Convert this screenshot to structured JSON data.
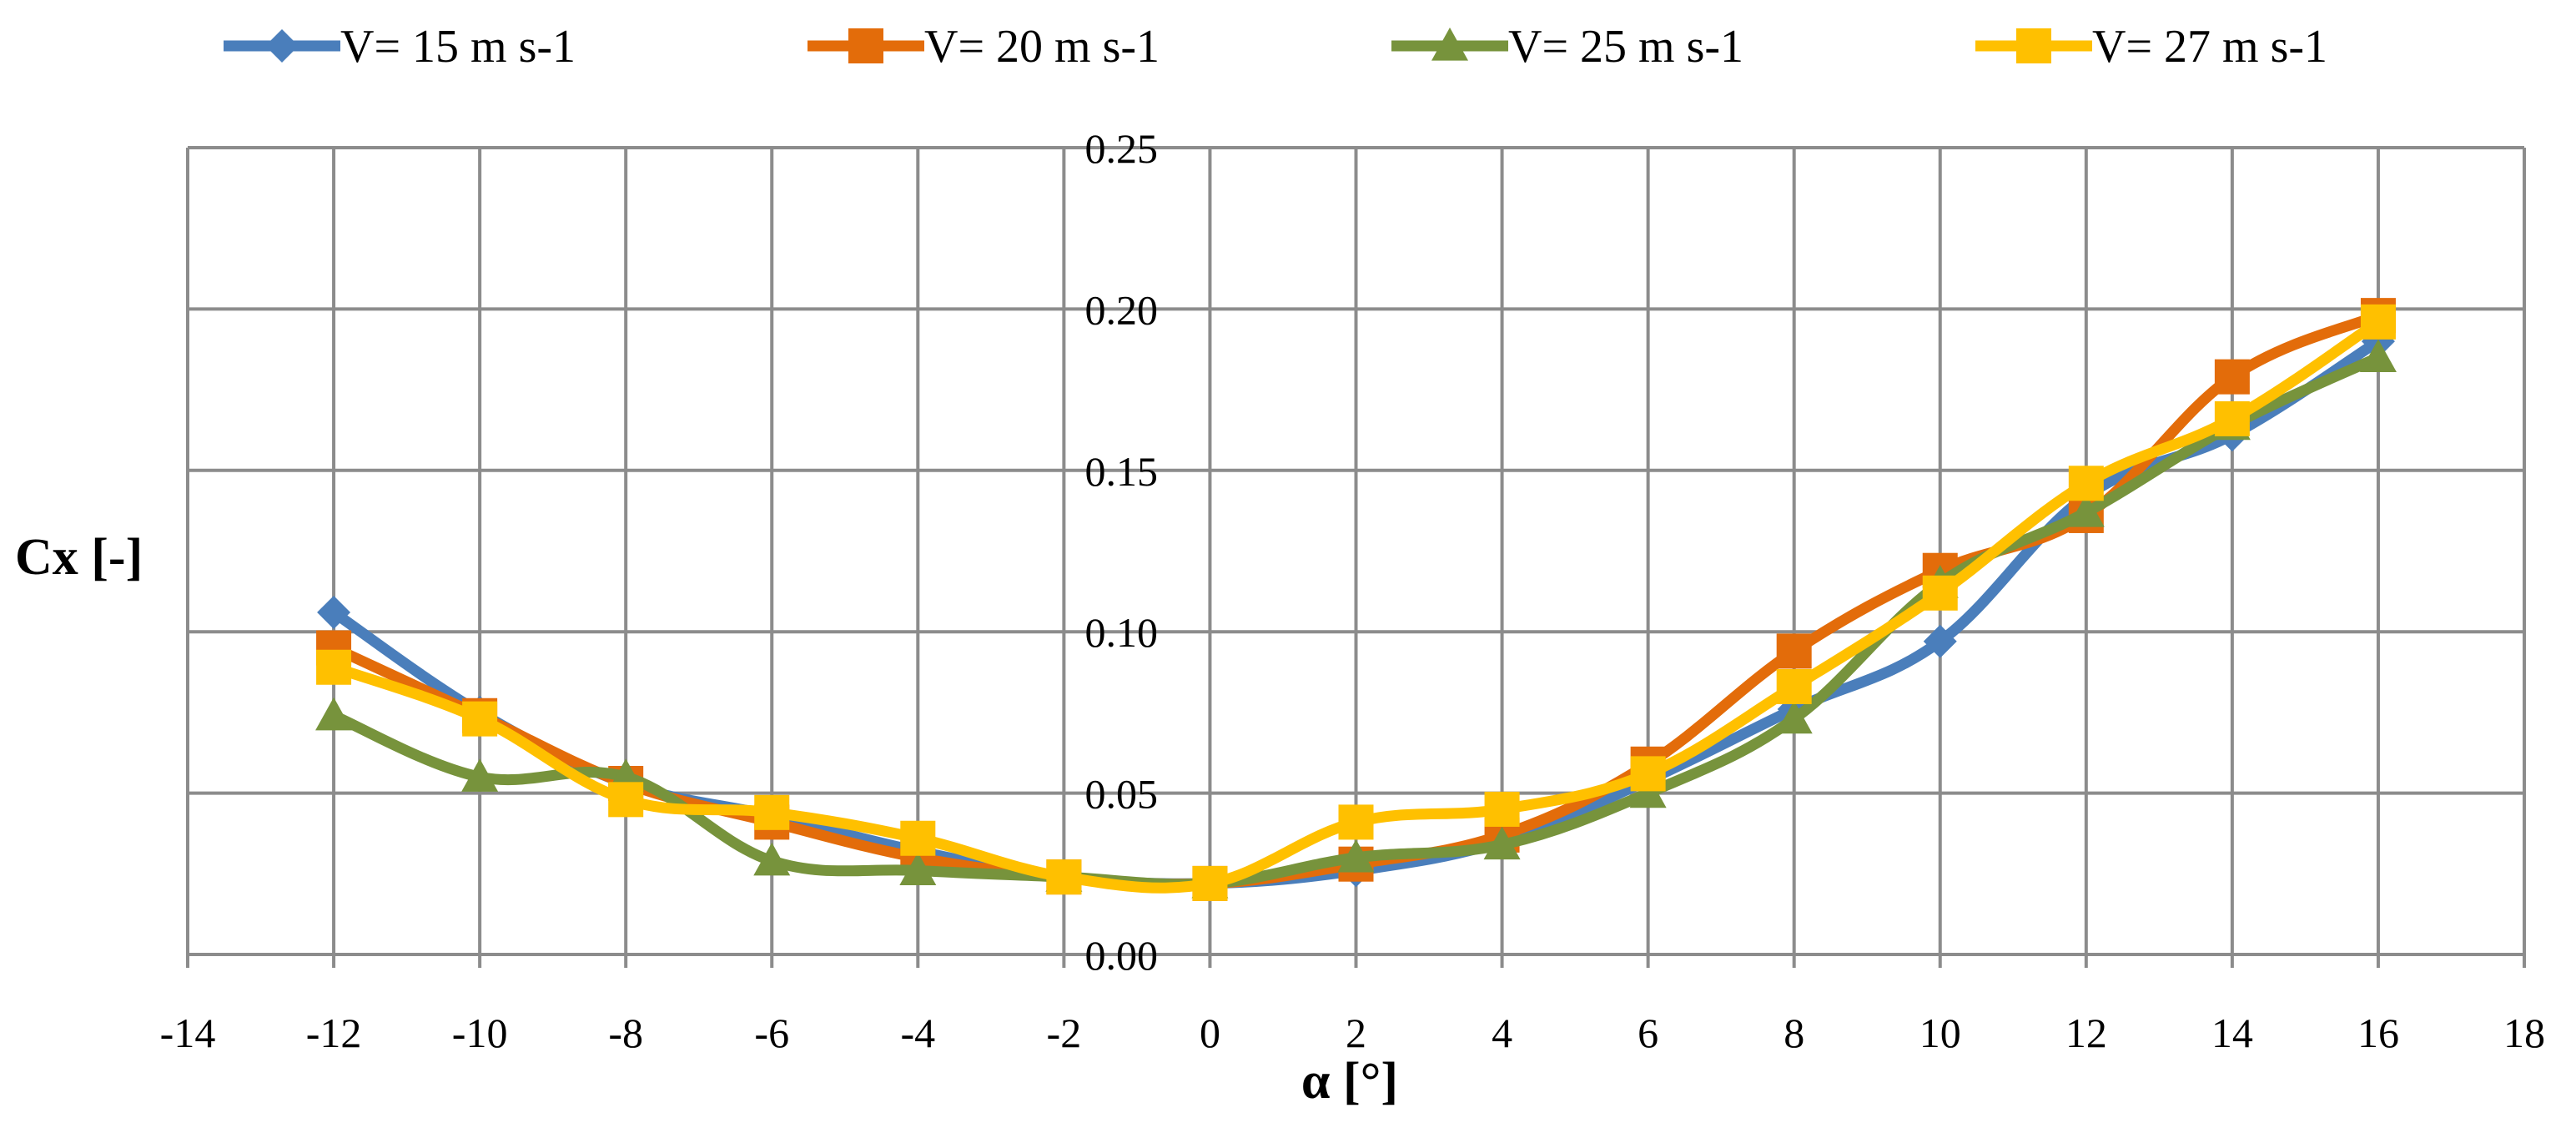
{
  "chart_data": {
    "type": "line",
    "title": "",
    "xlabel": "α [°]",
    "ylabel": "Cx [-]",
    "xlim": [
      -14,
      18
    ],
    "ylim": [
      0,
      0.25
    ],
    "x_ticks": [
      -14,
      -12,
      -10,
      -8,
      -6,
      -4,
      -2,
      0,
      2,
      4,
      6,
      8,
      10,
      12,
      14,
      16,
      18
    ],
    "y_ticks": [
      0,
      0.05,
      0.1,
      0.15,
      0.2,
      0.25
    ],
    "y_tick_labels": [
      "0.00",
      "0.05",
      "0.10",
      "0.15",
      "0.20",
      "0.25"
    ],
    "grid": true,
    "legend_position": "top",
    "x": [
      -12,
      -10,
      -8,
      -6,
      -4,
      -2,
      0,
      2,
      4,
      6,
      8,
      10,
      12,
      14,
      16
    ],
    "series": [
      {
        "name": "V= 15 m s-1",
        "color": "#4A7EBB",
        "marker": "diamond",
        "values": [
          0.106,
          0.075,
          0.053,
          0.043,
          0.032,
          0.024,
          0.022,
          0.026,
          0.035,
          0.054,
          0.076,
          0.097,
          0.142,
          0.161,
          0.19
        ]
      },
      {
        "name": "V= 20 m s-1",
        "color": "#E36C0A",
        "marker": "square",
        "values": [
          0.095,
          0.074,
          0.053,
          0.041,
          0.03,
          0.024,
          0.022,
          0.028,
          0.037,
          0.059,
          0.094,
          0.119,
          0.136,
          0.179,
          0.198
        ]
      },
      {
        "name": "V= 25 m s-1",
        "color": "#77933C",
        "marker": "triangle",
        "values": [
          0.074,
          0.055,
          0.055,
          0.029,
          0.026,
          0.024,
          0.022,
          0.03,
          0.034,
          0.05,
          0.073,
          0.115,
          0.137,
          0.164,
          0.185
        ]
      },
      {
        "name": "V= 27 m s-1",
        "color": "#FFC000",
        "marker": "square",
        "values": [
          0.089,
          0.073,
          0.048,
          0.044,
          0.036,
          0.024,
          0.022,
          0.041,
          0.045,
          0.056,
          0.083,
          0.112,
          0.146,
          0.166,
          0.196
        ]
      }
    ]
  }
}
